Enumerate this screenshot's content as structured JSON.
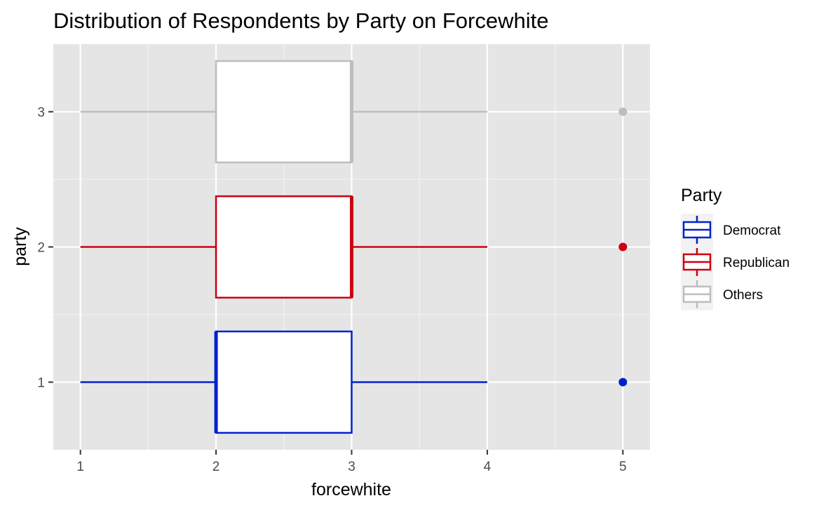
{
  "chart_data": {
    "type": "boxplot",
    "title": "Distribution of Respondents by Party on Forcewhite",
    "xlabel": "forcewhite",
    "ylabel": "party",
    "xlim": [
      0.8,
      5.2
    ],
    "ylim": [
      0.5,
      3.5
    ],
    "x_ticks": [
      "1",
      "2",
      "3",
      "4",
      "5"
    ],
    "y_ticks": [
      "1",
      "2",
      "3"
    ],
    "grid": true,
    "legend": {
      "title": "Party",
      "placement": "right",
      "entries": [
        "Democrat",
        "Republican",
        "Others"
      ]
    },
    "series": [
      {
        "name": "Democrat",
        "y": 1,
        "whisker_low": 1,
        "q1": 2,
        "median": 2,
        "q3": 3,
        "whisker_high": 4,
        "outliers": [
          5
        ],
        "color": "#0022cc"
      },
      {
        "name": "Republican",
        "y": 2,
        "whisker_low": 1,
        "q1": 2,
        "median": 3,
        "q3": 3,
        "whisker_high": 4,
        "outliers": [
          5
        ],
        "color": "#cc0011"
      },
      {
        "name": "Others",
        "y": 3,
        "whisker_low": 1,
        "q1": 2,
        "median": 3,
        "q3": 3,
        "whisker_high": 4,
        "outliers": [
          5
        ],
        "color": "#bdbdbd"
      }
    ]
  }
}
